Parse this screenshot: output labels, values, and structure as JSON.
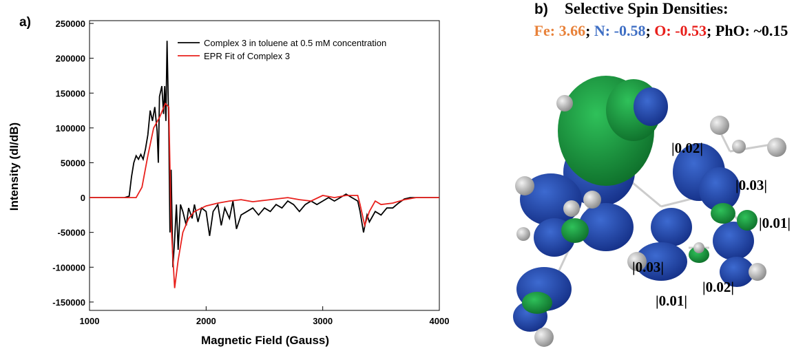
{
  "panel_a": "a)",
  "panel_b": "b)",
  "chart_data": {
    "type": "line",
    "xlabel": "Magnetic Field (Gauss)",
    "ylabel": "Intensity (dI/dB)",
    "xlim": [
      1000,
      4000
    ],
    "ylim": [
      -162000,
      254000
    ],
    "xticks": [
      1000,
      2000,
      3000,
      4000
    ],
    "yticks": [
      -150000,
      -100000,
      -50000,
      0,
      50000,
      100000,
      150000,
      200000,
      250000
    ],
    "legend": "upper right",
    "series": [
      {
        "name": "Complex 3 in toluene at 0.5 mM concentration",
        "color": "#000000",
        "x": [
          1000,
          1300,
          1340,
          1360,
          1380,
          1400,
          1420,
          1440,
          1460,
          1480,
          1500,
          1520,
          1540,
          1560,
          1580,
          1590,
          1600,
          1620,
          1635,
          1645,
          1655,
          1665,
          1680,
          1690,
          1700,
          1715,
          1730,
          1745,
          1760,
          1780,
          1800,
          1830,
          1850,
          1880,
          1900,
          1930,
          1960,
          2000,
          2030,
          2060,
          2100,
          2130,
          2160,
          2200,
          2230,
          2260,
          2300,
          2350,
          2400,
          2450,
          2500,
          2550,
          2600,
          2650,
          2700,
          2750,
          2800,
          2850,
          2900,
          2950,
          3000,
          3050,
          3100,
          3150,
          3200,
          3250,
          3300,
          3320,
          3350,
          3380,
          3400,
          3450,
          3500,
          3550,
          3600,
          3650,
          3700,
          3750,
          3800,
          4000
        ],
        "values": [
          0,
          0,
          2000,
          30000,
          50000,
          60000,
          55000,
          62000,
          55000,
          70000,
          90000,
          125000,
          110000,
          130000,
          95000,
          50000,
          145000,
          160000,
          120000,
          160000,
          110000,
          225000,
          100000,
          -50000,
          40000,
          -100000,
          -60000,
          -10000,
          -75000,
          -10000,
          -20000,
          -40000,
          -15000,
          -30000,
          -10000,
          -35000,
          -15000,
          -20000,
          -55000,
          -20000,
          -10000,
          -40000,
          -15000,
          -30000,
          -5000,
          -45000,
          -25000,
          -20000,
          -15000,
          -25000,
          -15000,
          -20000,
          -10000,
          -15000,
          -5000,
          -10000,
          -20000,
          -10000,
          -5000,
          -10000,
          -5000,
          0,
          -5000,
          0,
          5000,
          0,
          -5000,
          -20000,
          -50000,
          -25000,
          -35000,
          -20000,
          -25000,
          -15000,
          -15000,
          -8000,
          -2000,
          0,
          0,
          0
        ]
      },
      {
        "name": "EPR Fit of Complex 3",
        "color": "#e8201c",
        "x": [
          1000,
          1400,
          1450,
          1500,
          1550,
          1600,
          1650,
          1680,
          1700,
          1730,
          1760,
          1800,
          1850,
          1900,
          2000,
          2100,
          2200,
          2300,
          2400,
          2500,
          2600,
          2700,
          2800,
          2900,
          3000,
          3100,
          3200,
          3300,
          3320,
          3360,
          3400,
          3450,
          3500,
          3600,
          3700,
          3800,
          4000
        ],
        "values": [
          0,
          0,
          15000,
          60000,
          100000,
          115000,
          135000,
          130000,
          -40000,
          -130000,
          -90000,
          -50000,
          -30000,
          -20000,
          -12000,
          -8000,
          -5000,
          -3000,
          -6000,
          -4000,
          -2000,
          0,
          -3000,
          -5000,
          3000,
          0,
          3000,
          3000,
          -10000,
          -40000,
          -20000,
          -5000,
          -10000,
          -8000,
          -3000,
          0,
          0
        ]
      }
    ]
  },
  "spin_panel": {
    "title": "Selective Spin Densities:",
    "densities": [
      {
        "text": "Fe: 3.66",
        "color": "#e8823a"
      },
      {
        "text": "; ",
        "color": "#000000"
      },
      {
        "text": "N: -0.58",
        "color": "#3f6fc4"
      },
      {
        "text": "; ",
        "color": "#000000"
      },
      {
        "text": "O: -0.53",
        "color": "#e8201c"
      },
      {
        "text": "; ",
        "color": "#000000"
      },
      {
        "text": "PhO: ~0.15",
        "color": "#000000"
      }
    ],
    "annotations": [
      "|0.02|",
      "|0.03|",
      "|0.01|",
      "|0.03|",
      "|0.02|",
      "|0.01|"
    ]
  }
}
